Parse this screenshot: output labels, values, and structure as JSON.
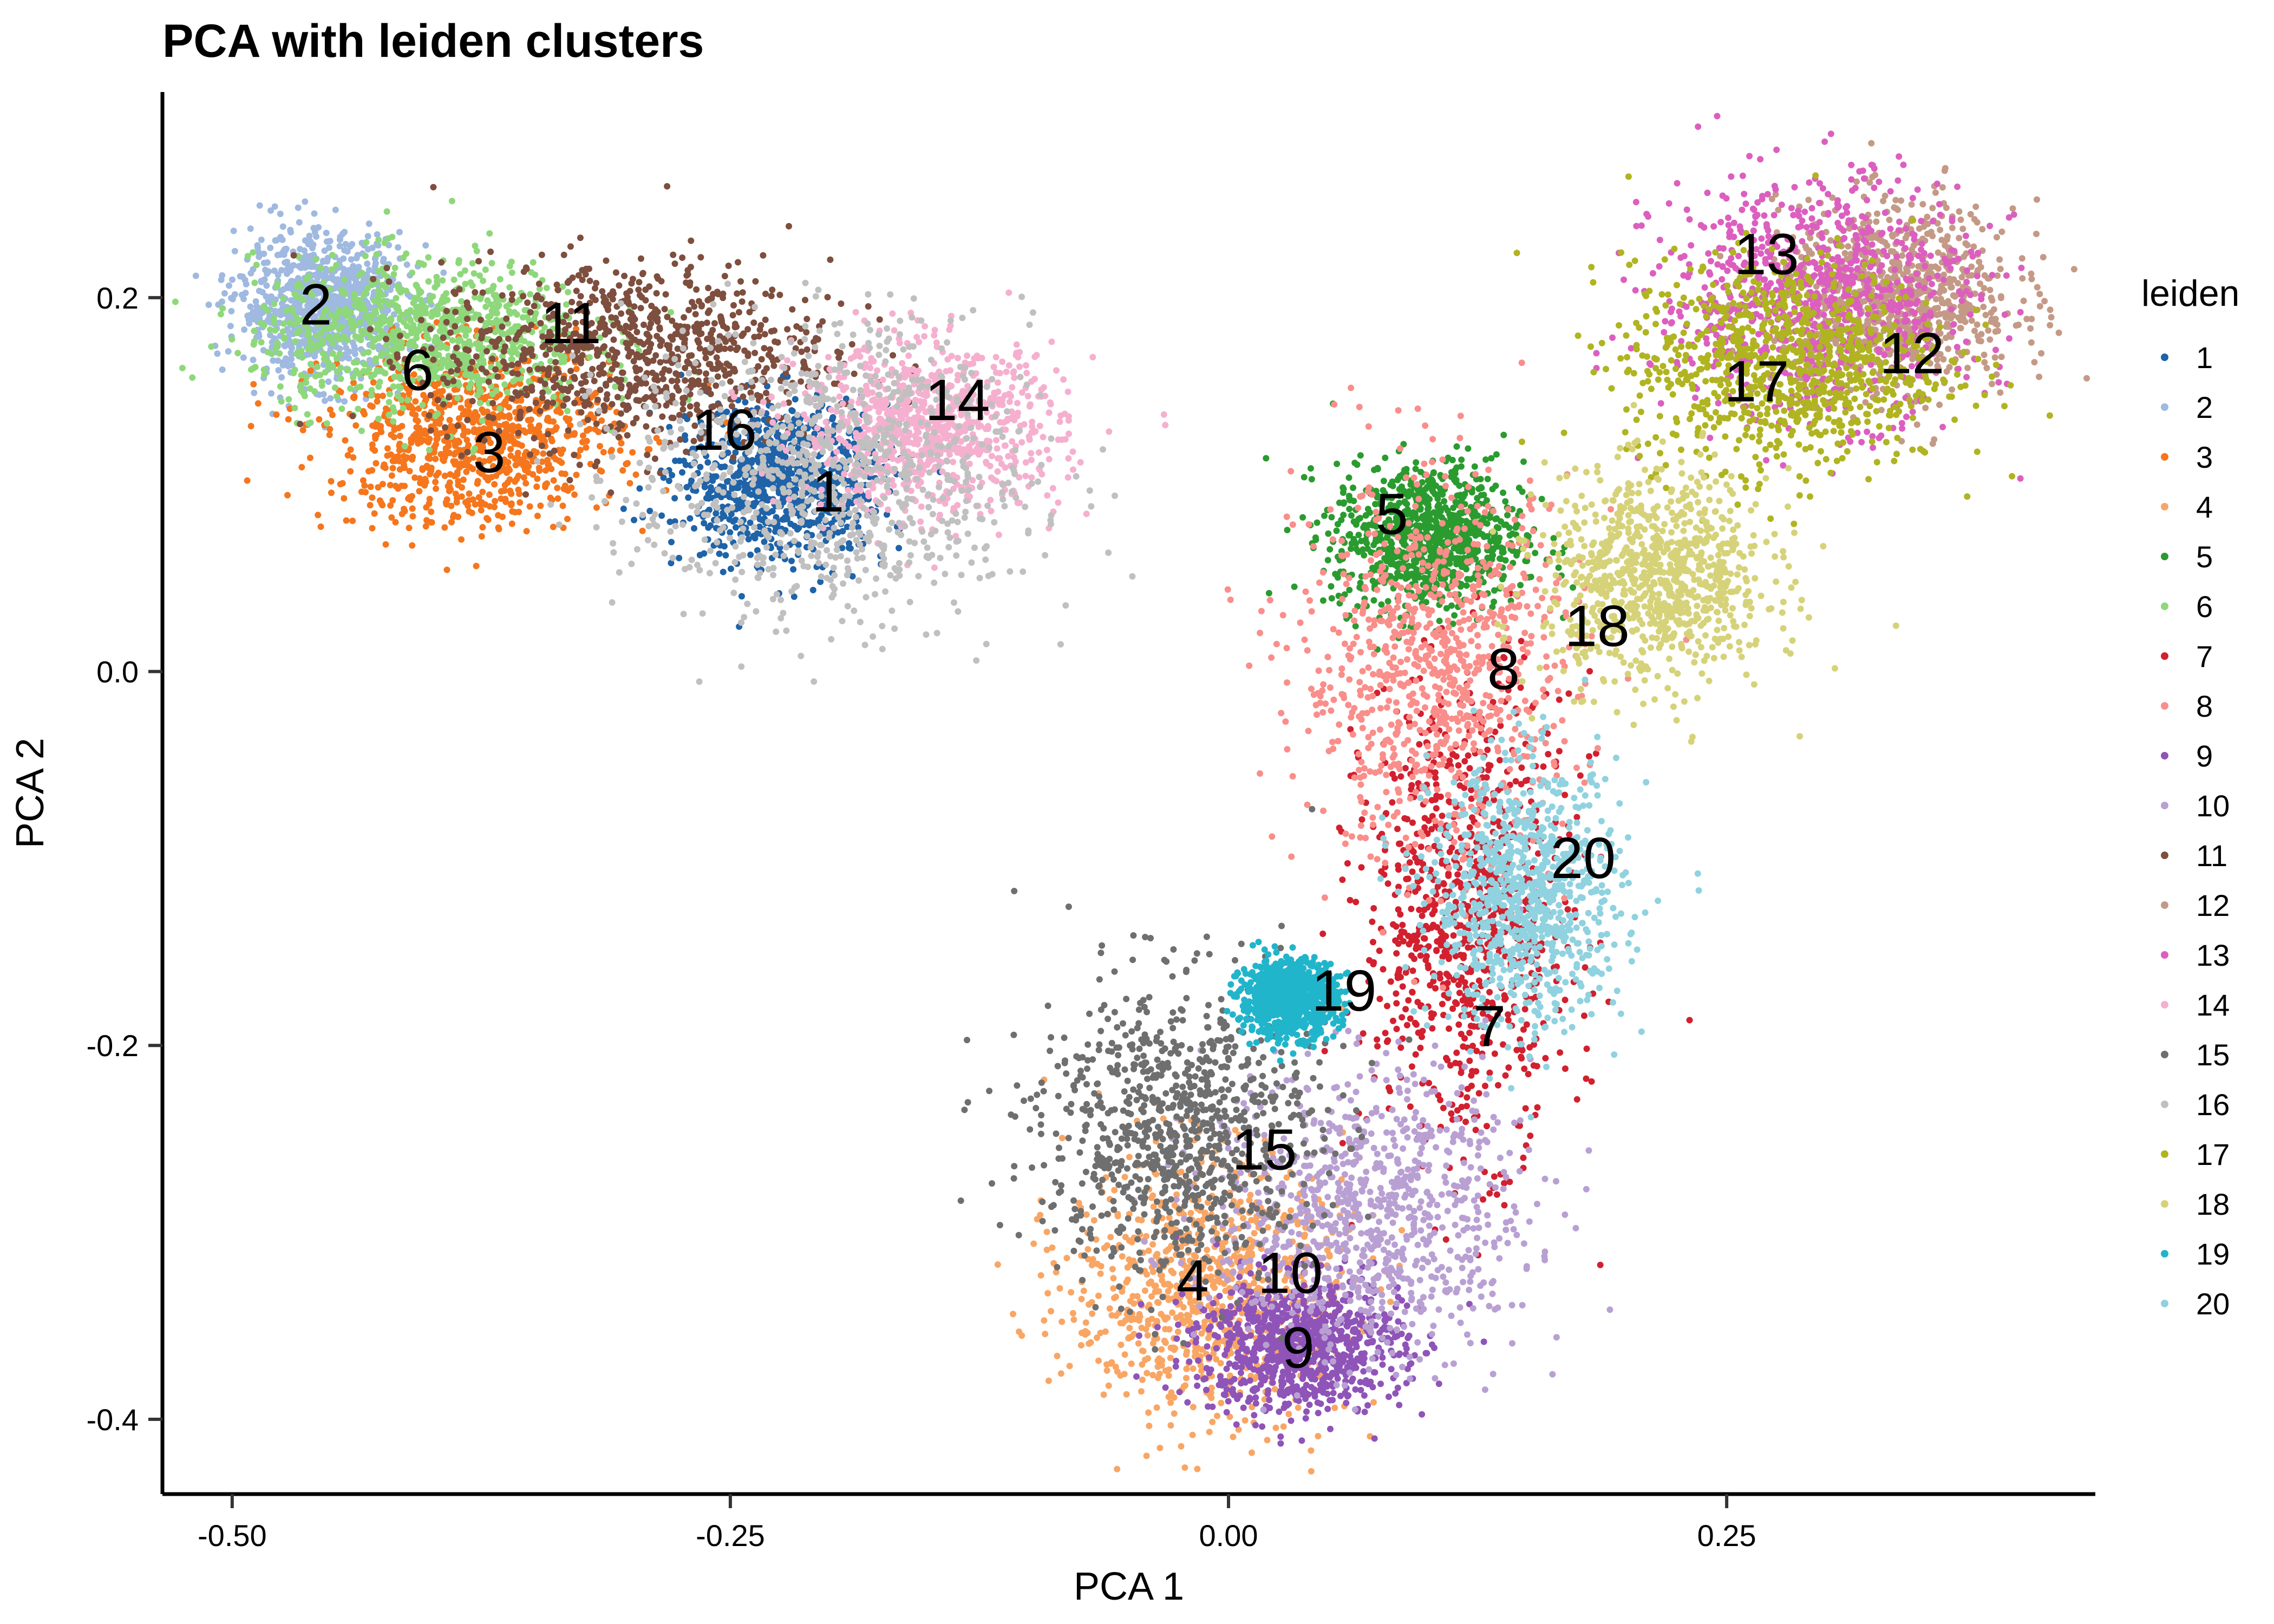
{
  "chart_data": {
    "type": "scatter",
    "title": "PCA with leiden clusters",
    "xlabel": "PCA 1",
    "ylabel": "PCA 2",
    "xlim": [
      -0.535,
      0.435
    ],
    "ylim": [
      -0.44,
      0.31
    ],
    "xticks": [
      -0.5,
      -0.25,
      0.0,
      0.25
    ],
    "xtick_labels": [
      "-0.50",
      "-0.25",
      "0.00",
      "0.25"
    ],
    "yticks": [
      -0.4,
      -0.2,
      0.0,
      0.2
    ],
    "ytick_labels": [
      "-0.4",
      "-0.2",
      "0.0",
      "0.2"
    ],
    "grid": false,
    "legend": {
      "title": "leiden",
      "position": "right"
    },
    "series": [
      {
        "name": "1",
        "color": "#1f63a8",
        "center": [
          -0.225,
          0.103
        ],
        "spread": [
          0.025,
          0.021
        ],
        "label_pos": [
          -0.201,
          0.096
        ]
      },
      {
        "name": "2",
        "color": "#9fb9e0",
        "center": [
          -0.455,
          0.195
        ],
        "spread": [
          0.021,
          0.019
        ],
        "label_pos": [
          -0.458,
          0.196
        ]
      },
      {
        "name": "3",
        "color": "#f5761d",
        "center": [
          -0.38,
          0.125
        ],
        "spread": [
          0.036,
          0.024
        ],
        "label_pos": [
          -0.371,
          0.117
        ]
      },
      {
        "name": "4",
        "color": "#f9a665",
        "center": [
          -0.01,
          -0.33
        ],
        "spread": [
          0.035,
          0.035
        ],
        "label_pos": [
          -0.018,
          -0.326
        ]
      },
      {
        "name": "5",
        "color": "#2a9b2e",
        "center": [
          0.1,
          0.072
        ],
        "spread": [
          0.024,
          0.02
        ],
        "label_pos": [
          0.082,
          0.084
        ]
      },
      {
        "name": "6",
        "color": "#8ed87b",
        "center": [
          -0.405,
          0.18
        ],
        "spread": [
          0.042,
          0.02
        ],
        "label_pos": [
          -0.407,
          0.161
        ]
      },
      {
        "name": "7",
        "color": "#d2202f",
        "center": [
          0.12,
          -0.13
        ],
        "spread": [
          0.026,
          0.062
        ],
        "label_pos": [
          0.131,
          -0.19
        ]
      },
      {
        "name": "8",
        "color": "#f98e8a",
        "center": [
          0.105,
          0.0
        ],
        "spread": [
          0.035,
          0.05
        ],
        "label_pos": [
          0.138,
          0.001
        ]
      },
      {
        "name": "9",
        "color": "#8f54b8",
        "center": [
          0.035,
          -0.36
        ],
        "spread": [
          0.026,
          0.018
        ],
        "label_pos": [
          0.035,
          -0.362
        ]
      },
      {
        "name": "10",
        "color": "#b9a0d3",
        "center": [
          0.07,
          -0.29
        ],
        "spread": [
          0.04,
          0.038
        ],
        "label_pos": [
          0.031,
          -0.322
        ]
      },
      {
        "name": "11",
        "color": "#7e4e3e",
        "center": [
          -0.3,
          0.17
        ],
        "spread": [
          0.05,
          0.025
        ],
        "label_pos": [
          -0.33,
          0.186
        ]
      },
      {
        "name": "12",
        "color": "#c49a87",
        "center": [
          0.335,
          0.2
        ],
        "spread": [
          0.03,
          0.025
        ],
        "label_pos": [
          0.343,
          0.17
        ]
      },
      {
        "name": "13",
        "color": "#dc5fbf",
        "center": [
          0.295,
          0.2
        ],
        "spread": [
          0.04,
          0.032
        ],
        "label_pos": [
          0.27,
          0.223
        ]
      },
      {
        "name": "14",
        "color": "#f5b0cf",
        "center": [
          -0.15,
          0.13
        ],
        "spread": [
          0.033,
          0.022
        ],
        "label_pos": [
          -0.136,
          0.145
        ]
      },
      {
        "name": "15",
        "color": "#6f6f6f",
        "center": [
          -0.025,
          -0.245
        ],
        "spread": [
          0.035,
          0.04
        ],
        "label_pos": [
          0.018,
          -0.256
        ]
      },
      {
        "name": "16",
        "color": "#c0c0c0",
        "center": [
          -0.2,
          0.105
        ],
        "spread": [
          0.05,
          0.04
        ],
        "label_pos": [
          -0.253,
          0.129
        ]
      },
      {
        "name": "17",
        "color": "#b0b421",
        "center": [
          0.28,
          0.165
        ],
        "spread": [
          0.04,
          0.028
        ],
        "label_pos": [
          0.265,
          0.155
        ]
      },
      {
        "name": "18",
        "color": "#d6d279",
        "center": [
          0.215,
          0.05
        ],
        "spread": [
          0.028,
          0.028
        ],
        "label_pos": [
          0.185,
          0.024
        ]
      },
      {
        "name": "19",
        "color": "#21b5cb",
        "center": [
          0.03,
          -0.175
        ],
        "spread": [
          0.012,
          0.01
        ],
        "label_pos": [
          0.058,
          -0.171
        ]
      },
      {
        "name": "20",
        "color": "#90d2df",
        "center": [
          0.15,
          -0.12
        ],
        "spread": [
          0.024,
          0.035
        ],
        "label_pos": [
          0.178,
          -0.1
        ]
      }
    ]
  }
}
